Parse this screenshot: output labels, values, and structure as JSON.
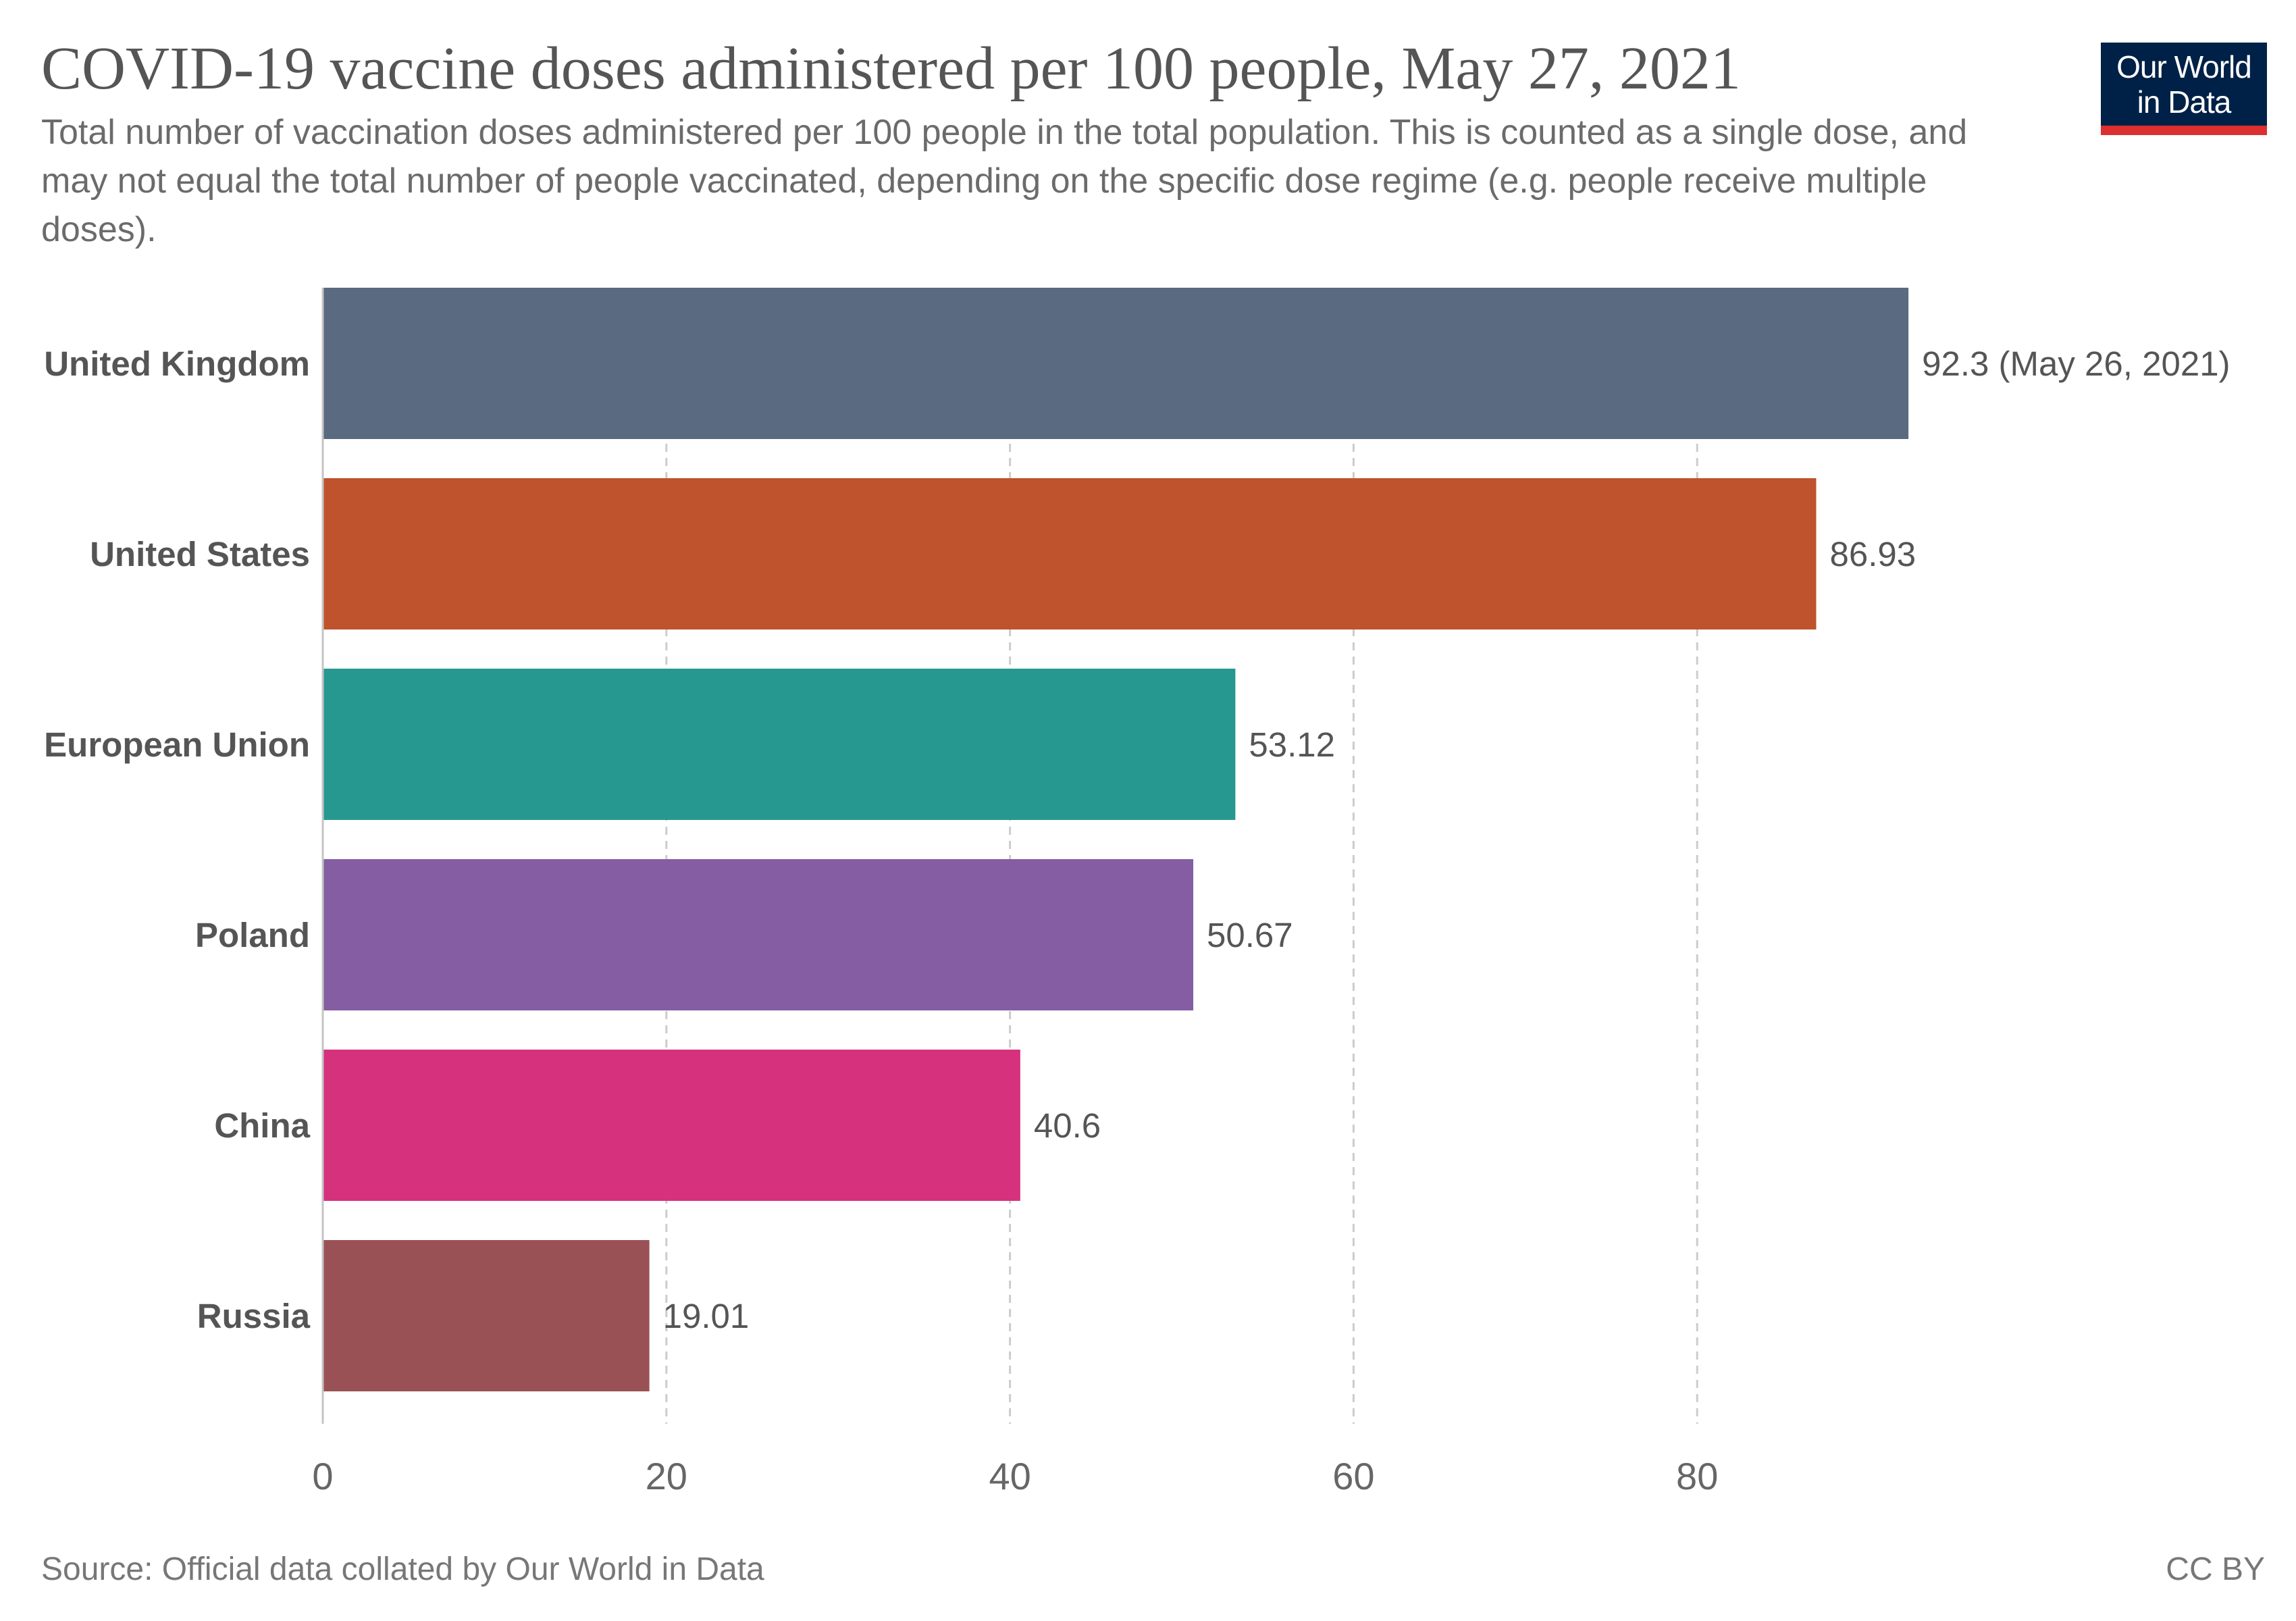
{
  "header": {
    "title": "COVID-19 vaccine doses administered per 100 people, May 27, 2021",
    "subtitle": "Total number of vaccination doses administered per 100 people in the total population. This is counted as a single dose, and may not equal the total number of people vaccinated, depending on the specific dose regime (e.g. people receive multiple doses)."
  },
  "logo": {
    "line1": "Our World",
    "line2": "in Data",
    "background": "#002147",
    "accent": "#dc2f2f"
  },
  "footer": {
    "source": "Source: Official data collated by Our World in Data",
    "license": "CC BY"
  },
  "chart_data": {
    "type": "bar",
    "orientation": "horizontal",
    "categories": [
      "United Kingdom",
      "United States",
      "European Union",
      "Poland",
      "China",
      "Russia"
    ],
    "values": [
      92.3,
      86.93,
      53.12,
      50.67,
      40.6,
      19.01
    ],
    "value_labels": [
      "92.3 (May 26, 2021)",
      "86.93",
      "53.12",
      "50.67",
      "40.6",
      "19.01"
    ],
    "colors": [
      "#5a6a80",
      "#be532d",
      "#26988f",
      "#845da2",
      "#d6317d",
      "#9a5155"
    ],
    "xticks": [
      0,
      20,
      40,
      60,
      80
    ],
    "xlim": [
      0,
      100
    ],
    "grid": true,
    "legend": "none",
    "title": "COVID-19 vaccine doses administered per 100 people, May 27, 2021",
    "xlabel": "",
    "ylabel": ""
  }
}
